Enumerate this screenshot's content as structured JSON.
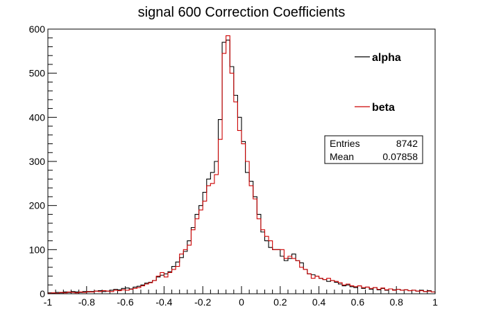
{
  "chart_data": {
    "type": "histogram",
    "title": "signal 600 Correction Coefficients",
    "xlabel": "",
    "ylabel": "",
    "xlim": [
      -1,
      1
    ],
    "ylim": [
      0,
      600
    ],
    "bin_width": 0.02,
    "x_ticks": [
      -1,
      -0.8,
      -0.6,
      -0.4,
      -0.2,
      0,
      0.2,
      0.4,
      0.6,
      0.8,
      1
    ],
    "x_tick_labels": [
      "-1",
      "-0.8",
      "-0.6",
      "-0.4",
      "-0.2",
      "0",
      "0.2",
      "0.4",
      "0.6",
      "0.8",
      "1"
    ],
    "y_ticks": [
      0,
      100,
      200,
      300,
      400,
      500,
      600
    ],
    "y_tick_labels": [
      "0",
      "100",
      "200",
      "300",
      "400",
      "500",
      "600"
    ],
    "legend": {
      "placement": "top-right"
    },
    "stats_box": {
      "rows": [
        {
          "label": "Entries",
          "value": "8742"
        },
        {
          "label": "Mean",
          "value": "0.07858"
        }
      ]
    },
    "series": [
      {
        "name": "alpha",
        "color": "#000000",
        "values": [
          2,
          1,
          3,
          2,
          4,
          3,
          5,
          4,
          3,
          5,
          4,
          5,
          6,
          7,
          5,
          6,
          8,
          10,
          9,
          12,
          13,
          11,
          15,
          17,
          20,
          24,
          26,
          30,
          38,
          42,
          45,
          50,
          62,
          72,
          82,
          96,
          120,
          150,
          180,
          200,
          230,
          260,
          275,
          300,
          395,
          570,
          575,
          515,
          450,
          400,
          345,
          275,
          255,
          220,
          180,
          140,
          120,
          105,
          100,
          100,
          85,
          75,
          80,
          90,
          75,
          70,
          55,
          45,
          43,
          40,
          35,
          32,
          28,
          30,
          26,
          22,
          18,
          20,
          16,
          14,
          18,
          12,
          15,
          10,
          14,
          9,
          12,
          8,
          11,
          9,
          10,
          8,
          9,
          7,
          8,
          6,
          8,
          5,
          7,
          4
        ]
      },
      {
        "name": "beta",
        "color": "#cc0000",
        "values": [
          1,
          2,
          1,
          3,
          2,
          4,
          3,
          2,
          4,
          3,
          5,
          4,
          6,
          5,
          7,
          6,
          5,
          8,
          7,
          9,
          8,
          10,
          12,
          14,
          18,
          22,
          25,
          30,
          40,
          48,
          38,
          48,
          55,
          62,
          90,
          100,
          110,
          145,
          170,
          190,
          210,
          245,
          250,
          270,
          350,
          545,
          585,
          500,
          435,
          370,
          340,
          300,
          245,
          215,
          170,
          145,
          130,
          120,
          100,
          100,
          100,
          80,
          85,
          80,
          75,
          60,
          55,
          45,
          35,
          40,
          35,
          32,
          35,
          30,
          28,
          25,
          20,
          22,
          18,
          16,
          18,
          14,
          15,
          12,
          14,
          10,
          13,
          9,
          11,
          8,
          10,
          8,
          9,
          7,
          8,
          6,
          7,
          5,
          6,
          4
        ]
      }
    ]
  }
}
